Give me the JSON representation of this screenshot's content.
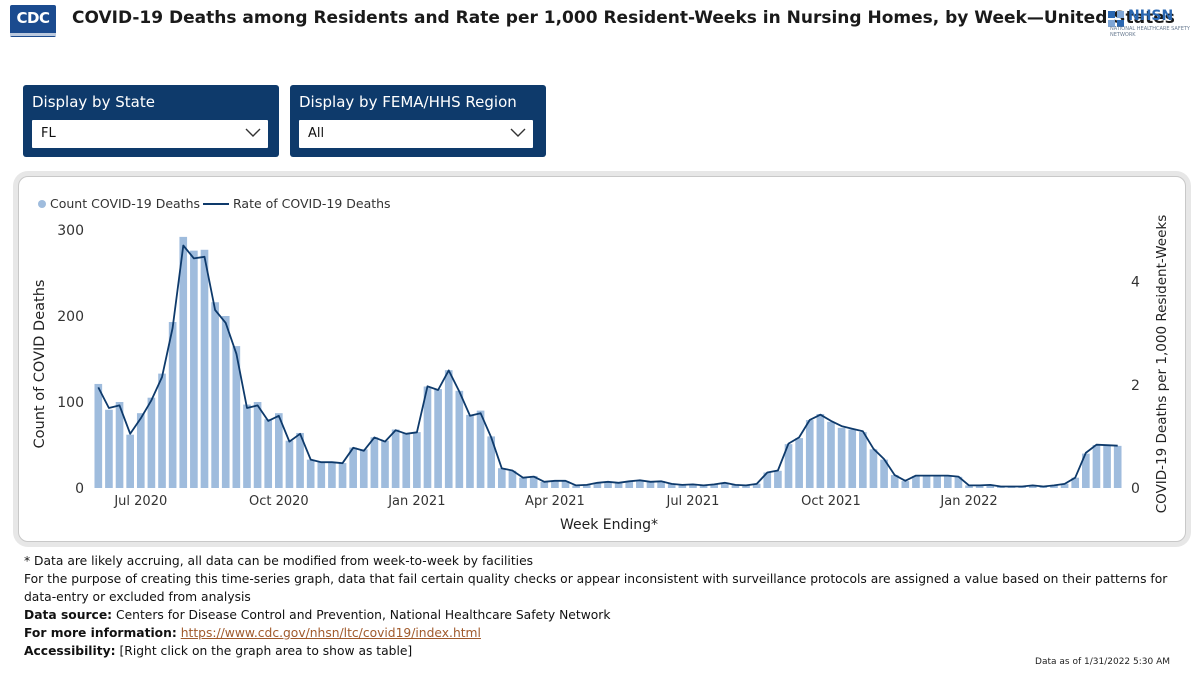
{
  "header": {
    "logo_text": "CDC",
    "title": "COVID-19 Deaths among Residents and Rate per 1,000 Resident-Weeks in Nursing Homes, by Week—United States",
    "nhsn_logo_text": "NHSN",
    "nhsn_logo_subtext": "NATIONAL HEALTHCARE SAFETY NETWORK"
  },
  "filters": [
    {
      "label": "Display by State",
      "value": "FL"
    },
    {
      "label": "Display by FEMA/HHS Region",
      "value": "All"
    }
  ],
  "chart_data": {
    "type": "bar",
    "legend": {
      "placement": "top-left",
      "bar_label": "Count COVID-19 Deaths",
      "line_label": "Rate of COVID-19 Deaths"
    },
    "xlabel": "Week Ending*",
    "ylabel": "Count of COVID Deaths",
    "y2label": "COVID-19 Deaths per 1,000 Resident-Weeks",
    "ylim": [
      0,
      300
    ],
    "yticks": [
      0,
      100,
      200,
      300
    ],
    "y2lim": [
      0,
      5
    ],
    "y2ticks": [
      0,
      2,
      4
    ],
    "x_tick_labels": [
      "Jul 2020",
      "Oct 2020",
      "Jan 2021",
      "Apr 2021",
      "Jul 2021",
      "Oct 2021",
      "Jan 2022"
    ],
    "x_tick_index": [
      4,
      17,
      30,
      43,
      56,
      69,
      82
    ],
    "bar_color": "#9fbcdd",
    "line_color": "#0e3a6b",
    "series": [
      {
        "name": "Count COVID-19 Deaths",
        "axis": "left",
        "values": [
          121,
          91,
          100,
          62,
          87,
          105,
          133,
          193,
          292,
          276,
          277,
          216,
          200,
          165,
          97,
          100,
          80,
          87,
          55,
          64,
          33,
          30,
          30,
          29,
          47,
          45,
          59,
          55,
          68,
          64,
          65,
          118,
          115,
          137,
          113,
          85,
          90,
          60,
          23,
          20,
          12,
          14,
          7,
          8,
          8,
          3,
          4,
          6,
          7,
          6,
          8,
          9,
          7,
          8,
          5,
          4,
          4,
          3,
          4,
          6,
          4,
          3,
          5,
          18,
          20,
          51,
          58,
          79,
          86,
          77,
          70,
          68,
          65,
          45,
          33,
          15,
          8,
          14,
          14,
          14,
          14,
          13,
          3,
          3,
          4,
          2,
          2,
          2,
          3,
          2,
          3,
          5,
          12,
          40,
          50,
          49,
          49
        ]
      },
      {
        "name": "Rate of COVID-19 Deaths",
        "axis": "right",
        "values": [
          1.95,
          1.55,
          1.6,
          1.05,
          1.35,
          1.7,
          2.15,
          3.1,
          4.7,
          4.45,
          4.48,
          3.45,
          3.2,
          2.6,
          1.55,
          1.6,
          1.3,
          1.4,
          0.9,
          1.05,
          0.55,
          0.5,
          0.5,
          0.48,
          0.78,
          0.72,
          0.98,
          0.9,
          1.12,
          1.05,
          1.08,
          1.97,
          1.9,
          2.28,
          1.87,
          1.4,
          1.45,
          0.98,
          0.38,
          0.34,
          0.2,
          0.22,
          0.12,
          0.14,
          0.14,
          0.05,
          0.06,
          0.1,
          0.12,
          0.1,
          0.13,
          0.15,
          0.12,
          0.13,
          0.08,
          0.06,
          0.07,
          0.05,
          0.07,
          0.1,
          0.06,
          0.05,
          0.08,
          0.3,
          0.34,
          0.86,
          0.98,
          1.32,
          1.42,
          1.3,
          1.2,
          1.15,
          1.1,
          0.76,
          0.56,
          0.25,
          0.14,
          0.24,
          0.24,
          0.24,
          0.24,
          0.22,
          0.05,
          0.05,
          0.06,
          0.03,
          0.03,
          0.03,
          0.05,
          0.03,
          0.05,
          0.08,
          0.2,
          0.68,
          0.84,
          0.83,
          0.82
        ]
      }
    ]
  },
  "notes": {
    "line1": "* Data are likely accruing, all data can be modified from week-to-week by facilities",
    "line2": "For the purpose of creating this time-series graph, data that fail certain quality checks or appear inconsistent with surveillance protocols are assigned a value based on their patterns for data-entry or excluded from analysis",
    "source_label": "Data source:",
    "source_text": " Centers for Disease Control and Prevention, National Healthcare Safety Network",
    "info_label": "For more information:",
    "info_link": "https://www.cdc.gov/nhsn/ltc/covid19/index.html",
    "access_label": "Accessibility:",
    "access_text": " [Right click on the graph area to show as table]",
    "as_of": "Data as of 1/31/2022 5:30 AM"
  }
}
